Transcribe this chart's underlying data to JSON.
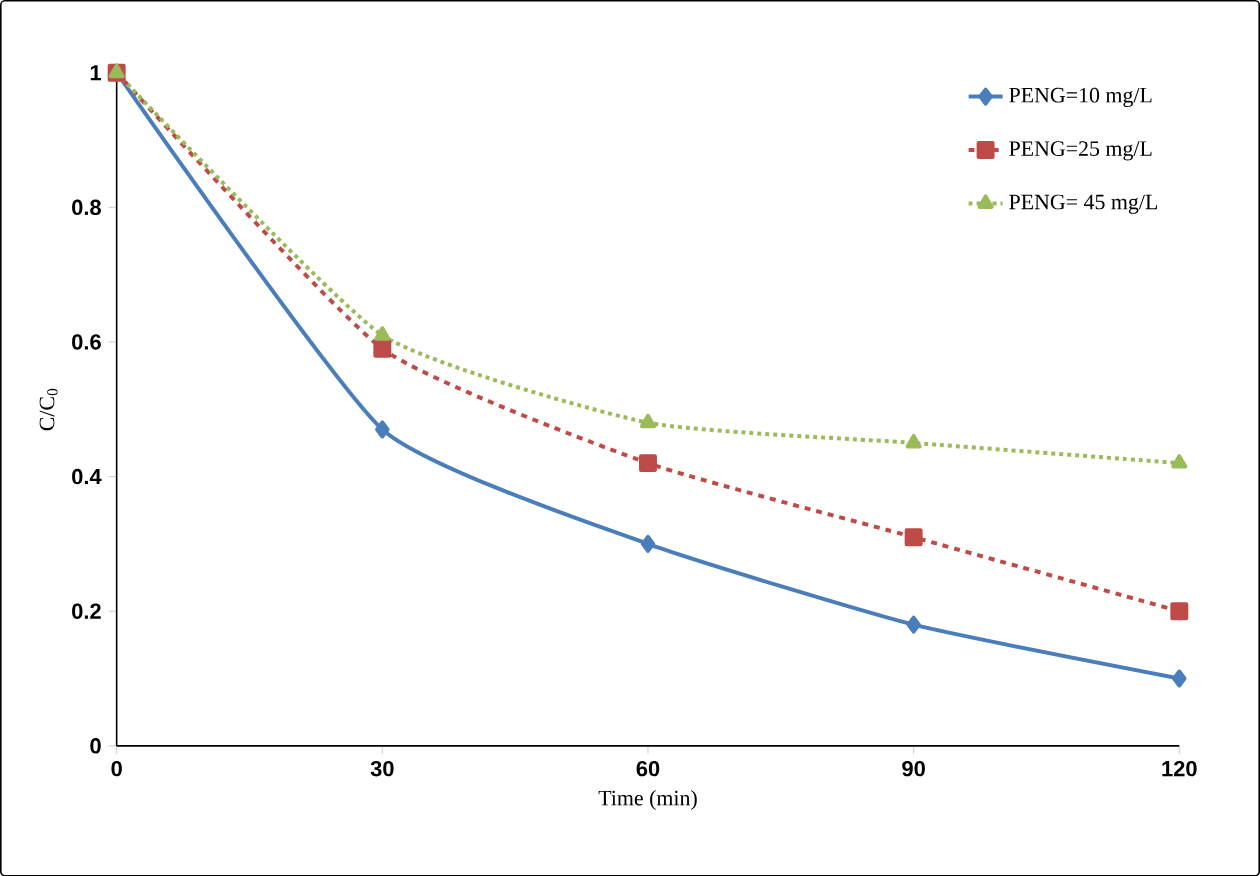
{
  "chart_data": {
    "type": "line",
    "xlabel": "Time (min)",
    "ylabel": "C/C$_{0}$",
    "x": [
      0,
      30,
      60,
      90,
      120
    ],
    "series": [
      {
        "name": "PENG=10 mg/L",
        "color": "#4a7ebb",
        "values": [
          1,
          0.47,
          0.3,
          0.18,
          0.1
        ],
        "marker": "diamond",
        "line_style": "solid"
      },
      {
        "name": "PENG=25 mg/L",
        "color": "#be4b48",
        "values": [
          1,
          0.59,
          0.42,
          0.31,
          0.2
        ],
        "marker": "square",
        "line_style": "dashed"
      },
      {
        "name": "PENG= 45 mg/L",
        "color": "#9bbb59",
        "values": [
          1,
          0.61,
          0.48,
          0.45,
          0.42
        ],
        "marker": "triangle",
        "line_style": "dotted"
      }
    ],
    "xlim": [
      0,
      120
    ],
    "ylim": [
      0,
      1
    ],
    "xticks": [
      0,
      30,
      60,
      90,
      120
    ],
    "yticks": [
      0,
      0.2,
      0.4,
      0.6,
      0.8,
      1
    ],
    "grid": false,
    "legend": "top right"
  }
}
